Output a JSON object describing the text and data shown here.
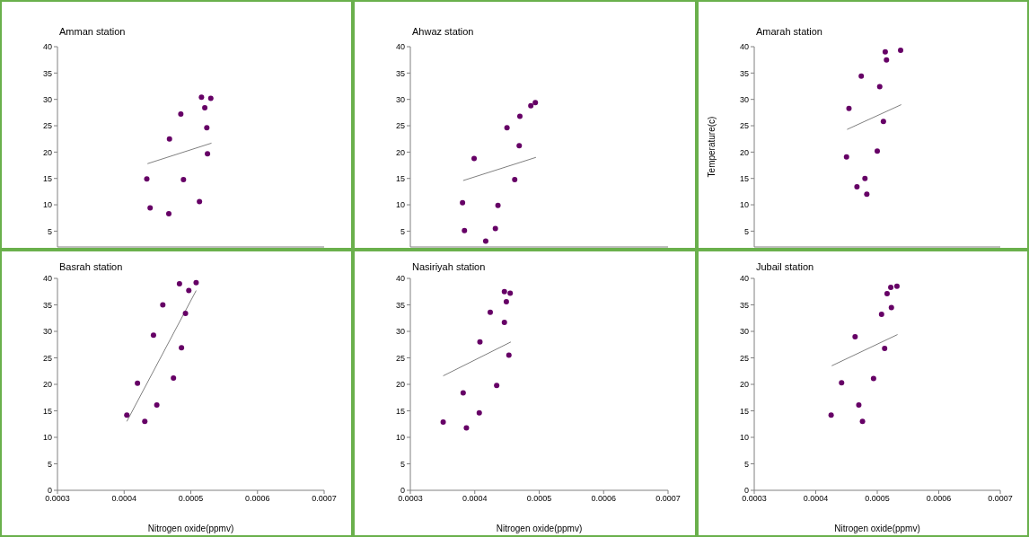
{
  "chart_data": [
    {
      "type": "scatter",
      "title": "Amman station",
      "xlim": [
        0.0003,
        0.0007
      ],
      "ylim": [
        2,
        40
      ],
      "yticks": [
        5,
        10,
        15,
        20,
        25,
        30,
        35,
        40
      ],
      "tick_labels": "y",
      "marker": "circle",
      "series": [
        {
          "color": "#660066",
          "x": [
            0.000516,
            0.00053,
            0.000521,
            0.000485,
            0.000524,
            0.000468,
            0.000525,
            0.000434,
            0.000489,
            0.000513,
            0.000439,
            0.000467
          ],
          "values": [
            30.4,
            30.2,
            28.4,
            27.2,
            24.6,
            22.5,
            19.7,
            14.9,
            14.8,
            10.6,
            9.4,
            8.3
          ]
        },
        {
          "type": "line",
          "marker": "none",
          "color": "#808080",
          "x": [
            0.000435,
            0.000531
          ],
          "values": [
            17.8,
            21.7
          ]
        }
      ]
    },
    {
      "type": "scatter",
      "title": "Ahwaz station",
      "xlim": [
        0.0003,
        0.0007
      ],
      "ylim": [
        2,
        40
      ],
      "yticks": [
        5,
        10,
        15,
        20,
        25,
        30,
        35,
        40
      ],
      "tick_labels": "y",
      "marker": "circle",
      "series": [
        {
          "color": "#660066",
          "x": [
            0.000494,
            0.000487,
            0.00047,
            0.00045,
            0.000469,
            0.000399,
            0.000462,
            0.000381,
            0.000436,
            0.000384,
            0.000432,
            0.000417
          ],
          "values": [
            29.4,
            28.8,
            26.8,
            24.6,
            21.2,
            18.8,
            14.8,
            10.4,
            9.9,
            5.1,
            5.5,
            3.1
          ]
        },
        {
          "type": "line",
          "marker": "none",
          "color": "#808080",
          "x": [
            0.000382,
            0.000495
          ],
          "values": [
            14.6,
            19.0
          ]
        }
      ]
    },
    {
      "type": "scatter",
      "title": "Amarah station",
      "ylabel": "Temperature(c)",
      "xlim": [
        0.0003,
        0.0007
      ],
      "ylim": [
        2,
        40
      ],
      "yticks": [
        5,
        10,
        15,
        20,
        25,
        30,
        35,
        40
      ],
      "tick_labels": "y",
      "marker": "circle",
      "series": [
        {
          "color": "#660066",
          "x": [
            0.000538,
            0.000513,
            0.000515,
            0.000474,
            0.000504,
            0.000454,
            0.00051,
            0.0005,
            0.00045,
            0.00048,
            0.000467,
            0.000483
          ],
          "values": [
            39.3,
            39.0,
            37.5,
            34.4,
            32.4,
            28.3,
            25.8,
            20.2,
            19.1,
            15.0,
            13.4,
            12.0
          ]
        },
        {
          "type": "line",
          "marker": "none",
          "color": "#808080",
          "x": [
            0.000451,
            0.000539
          ],
          "values": [
            24.3,
            29.0
          ]
        }
      ]
    },
    {
      "type": "scatter",
      "title": "Basrah station",
      "xlabel": "Nitrogen oxide(ppmv)",
      "xlim": [
        0.0003,
        0.0007
      ],
      "xticks": [
        0.0003,
        0.0004,
        0.0005,
        0.0006,
        0.0007
      ],
      "ylim": [
        0,
        40
      ],
      "yticks": [
        0,
        5,
        10,
        15,
        20,
        25,
        30,
        35,
        40
      ],
      "marker": "circle",
      "series": [
        {
          "color": "#660066",
          "x": [
            0.000508,
            0.000483,
            0.000497,
            0.000458,
            0.000492,
            0.000444,
            0.000486,
            0.000474,
            0.00042,
            0.000449,
            0.000404,
            0.000431
          ],
          "values": [
            39.2,
            39.0,
            37.7,
            35.0,
            33.4,
            29.3,
            26.9,
            21.2,
            20.2,
            16.1,
            14.2,
            13.0
          ]
        },
        {
          "type": "line",
          "marker": "none",
          "color": "#808080",
          "x": [
            0.000404,
            0.000508
          ],
          "values": [
            13.0,
            37.7
          ]
        }
      ]
    },
    {
      "type": "scatter",
      "title": "Nasiriyah station",
      "xlabel": "Nitrogen oxide(ppmv)",
      "xlim": [
        0.0003,
        0.0007
      ],
      "xticks": [
        0.0003,
        0.0004,
        0.0005,
        0.0006,
        0.0007
      ],
      "ylim": [
        0,
        40
      ],
      "yticks": [
        0,
        5,
        10,
        15,
        20,
        25,
        30,
        35,
        40
      ],
      "marker": "circle",
      "series": [
        {
          "color": "#660066",
          "x": [
            0.000446,
            0.000455,
            0.000449,
            0.000424,
            0.000446,
            0.000408,
            0.000453,
            0.000434,
            0.000382,
            0.000407,
            0.000351,
            0.000387
          ],
          "values": [
            37.5,
            37.2,
            35.6,
            33.6,
            31.7,
            28.0,
            25.5,
            19.8,
            18.4,
            14.6,
            12.9,
            11.8
          ]
        },
        {
          "type": "line",
          "marker": "none",
          "color": "#808080",
          "x": [
            0.000351,
            0.000456
          ],
          "values": [
            21.6,
            28.0
          ]
        }
      ]
    },
    {
      "type": "scatter",
      "title": "Jubail station",
      "xlabel": "Nitrogen oxide(ppmv)",
      "xlim": [
        0.0003,
        0.0007
      ],
      "xticks": [
        0.0003,
        0.0004,
        0.0005,
        0.0006,
        0.0007
      ],
      "ylim": [
        0,
        40
      ],
      "yticks": [
        0,
        5,
        10,
        15,
        20,
        25,
        30,
        35,
        40
      ],
      "marker": "circle",
      "series": [
        {
          "color": "#660066",
          "x": [
            0.000532,
            0.000522,
            0.000516,
            0.000523,
            0.000507,
            0.000464,
            0.000512,
            0.000494,
            0.000442,
            0.00047,
            0.000425,
            0.000476
          ],
          "values": [
            38.5,
            38.3,
            37.1,
            34.5,
            33.2,
            29.0,
            26.8,
            21.1,
            20.3,
            16.1,
            14.2,
            13.0
          ]
        },
        {
          "type": "line",
          "marker": "none",
          "color": "#808080",
          "x": [
            0.000426,
            0.000533
          ],
          "values": [
            23.5,
            29.4
          ]
        }
      ]
    }
  ]
}
